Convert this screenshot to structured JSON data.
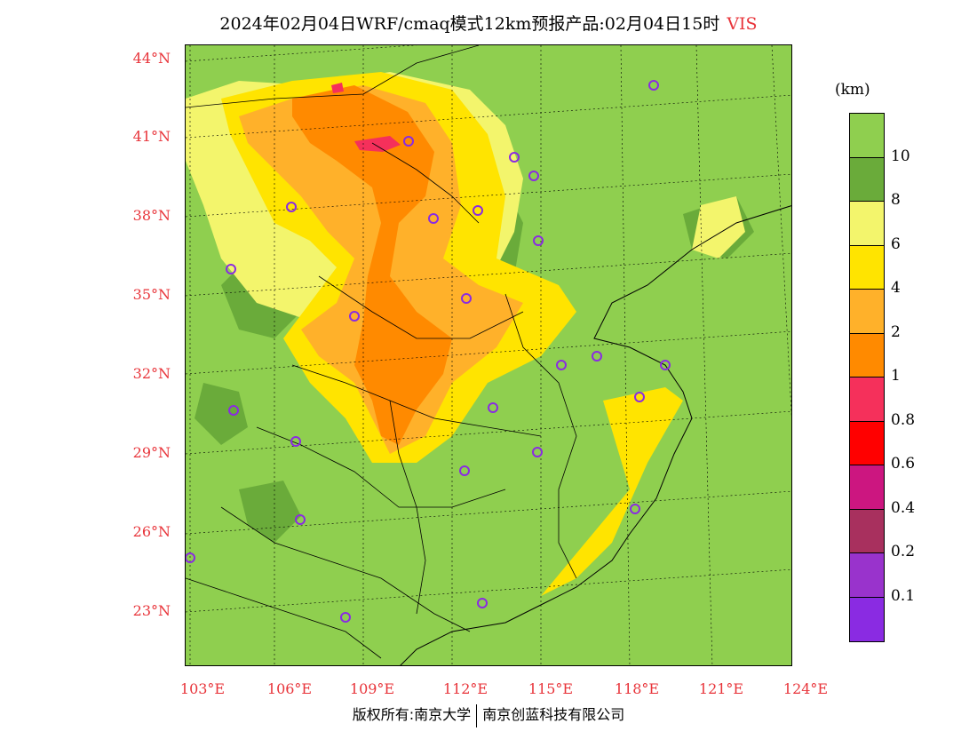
{
  "title": {
    "main": "2024年02月04日WRF/cmaq模式12km预报产品:02月04日15时",
    "variable": "VIS"
  },
  "map": {
    "lat_labels": [
      "44°N",
      "41°N",
      "38°N",
      "35°N",
      "32°N",
      "29°N",
      "26°N",
      "23°N"
    ],
    "lon_labels": [
      "103°E",
      "106°E",
      "109°E",
      "112°E",
      "115°E",
      "118°E",
      "121°E",
      "124°E"
    ],
    "station_marker_color": "#8a2be2"
  },
  "colorbar": {
    "unit": "(km)",
    "labels": [
      "10",
      "8",
      "6",
      "4",
      "2",
      "1",
      "0.8",
      "0.6",
      "0.4",
      "0.2",
      "0.1"
    ],
    "colors": [
      "#8fcf4f",
      "#6aab3a",
      "#f3f56c",
      "#ffe400",
      "#ffb12a",
      "#ff8a00",
      "#f5305b",
      "#ff0000",
      "#cc1680",
      "#a8305e",
      "#9933cc",
      "#8a2be2"
    ]
  },
  "footer": {
    "copyright": "版权所有:南京大学",
    "company": "南京创蓝科技有限公司"
  }
}
